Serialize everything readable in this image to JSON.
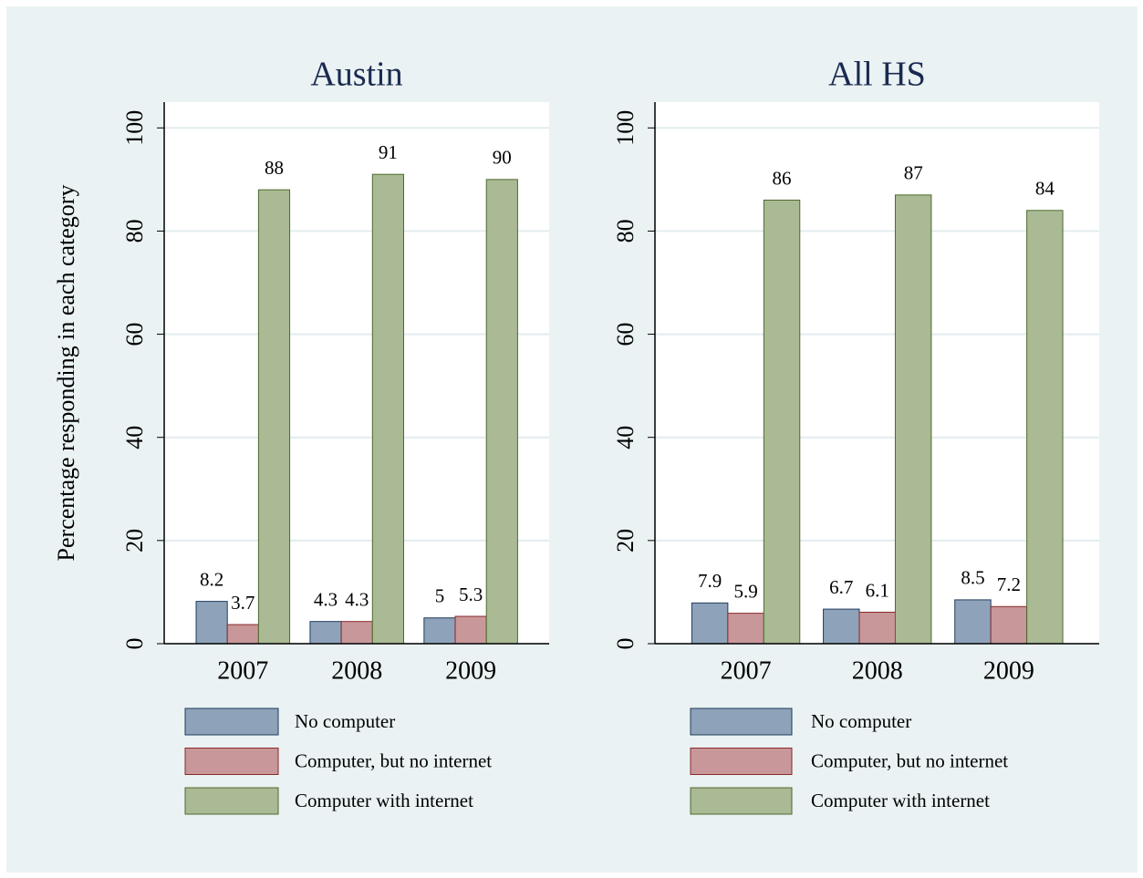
{
  "chart_data": [
    {
      "type": "bar",
      "title": "Austin",
      "ylabel": "Percentage responding in each category",
      "categories": [
        "2007",
        "2008",
        "2009"
      ],
      "series": [
        {
          "name": "No computer",
          "color": "#8ea2ba",
          "values": [
            8.2,
            4.3,
            5
          ]
        },
        {
          "name": "Computer, but no internet",
          "color": "#c89799",
          "values": [
            3.7,
            4.3,
            5.3
          ]
        },
        {
          "name": "Computer with internet",
          "color": "#a9ba94",
          "values": [
            88,
            91,
            90
          ]
        }
      ],
      "ylim": [
        0,
        105
      ],
      "yticks": [
        0,
        20,
        40,
        60,
        80,
        100
      ],
      "grid": true
    },
    {
      "type": "bar",
      "title": "All HS",
      "categories": [
        "2007",
        "2008",
        "2009"
      ],
      "series": [
        {
          "name": "No computer",
          "color": "#8ea2ba",
          "values": [
            7.9,
            6.7,
            8.5
          ]
        },
        {
          "name": "Computer, but no internet",
          "color": "#c89799",
          "values": [
            5.9,
            6.1,
            7.2
          ]
        },
        {
          "name": "Computer with internet",
          "color": "#a9ba94",
          "values": [
            86,
            87,
            84
          ]
        }
      ],
      "ylim": [
        0,
        105
      ],
      "yticks": [
        0,
        20,
        40,
        60,
        80,
        100
      ],
      "grid": true
    }
  ]
}
